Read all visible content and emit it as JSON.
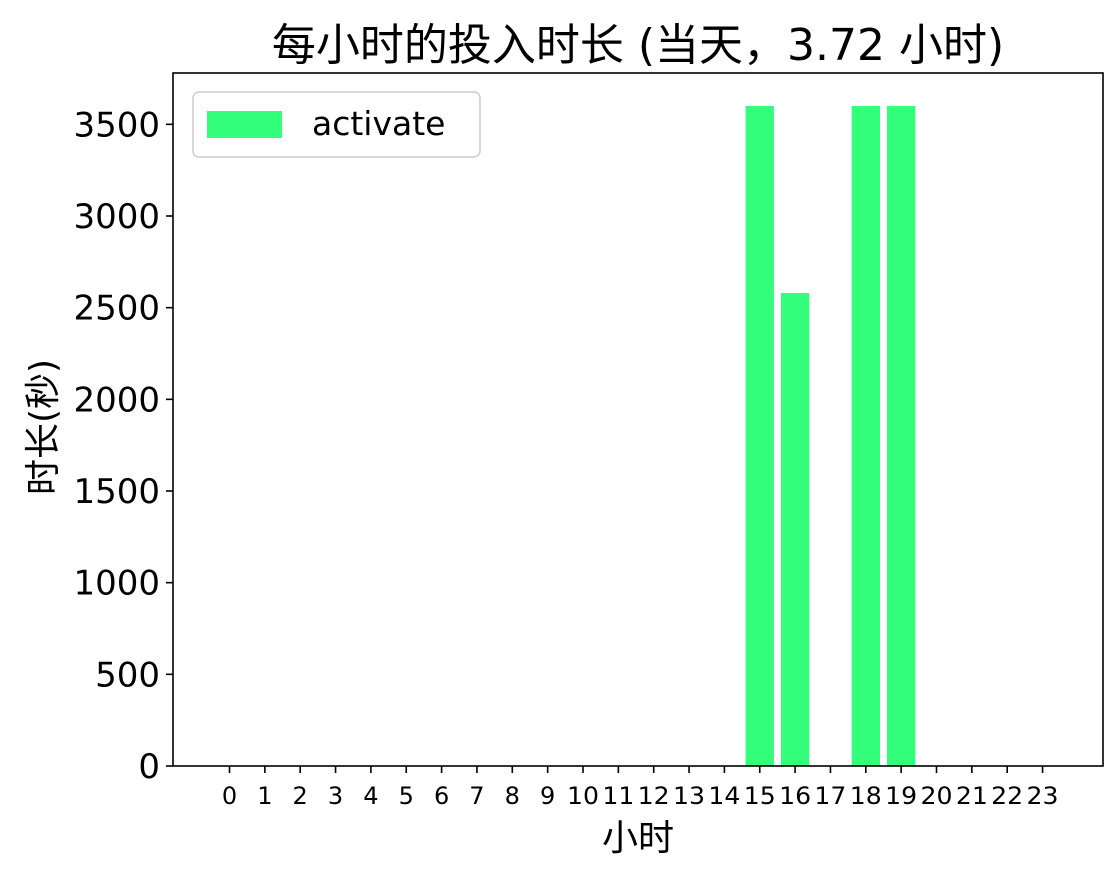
{
  "chart_data": {
    "type": "bar",
    "title": "每小时的投入时长 (当天，3.72 小时)",
    "xlabel": "小时",
    "ylabel": "时长(秒)",
    "categories": [
      "0",
      "1",
      "2",
      "3",
      "4",
      "5",
      "6",
      "7",
      "8",
      "9",
      "10",
      "11",
      "12",
      "13",
      "14",
      "15",
      "16",
      "17",
      "18",
      "19",
      "20",
      "21",
      "22",
      "23"
    ],
    "series": [
      {
        "name": "activate",
        "color": "#33ff7a",
        "values": [
          0,
          0,
          0,
          0,
          0,
          0,
          0,
          0,
          0,
          0,
          0,
          0,
          0,
          0,
          0,
          3600,
          2580,
          0,
          3600,
          3600,
          0,
          0,
          0,
          0
        ]
      }
    ],
    "ylim": [
      0,
      3780
    ],
    "yticks": [
      0,
      500,
      1000,
      1500,
      2000,
      2500,
      3000,
      3500
    ],
    "legend_position": "top-left",
    "grid": false
  }
}
